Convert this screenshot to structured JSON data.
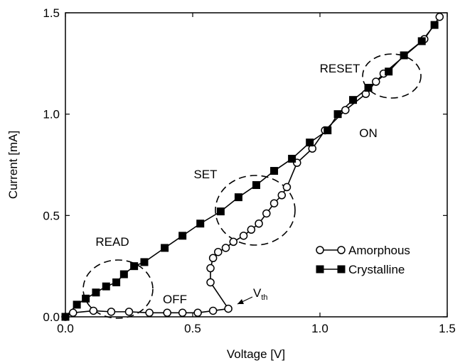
{
  "chart_data": {
    "type": "line",
    "xlabel": "Voltage [V]",
    "ylabel": "Current [mA]",
    "xlim": [
      0,
      1.5
    ],
    "ylim": [
      0,
      1.5
    ],
    "xticks": [
      {
        "value": 0,
        "label": "0.0"
      },
      {
        "value": 0.5,
        "label": "0.5"
      },
      {
        "value": 1,
        "label": "1.0"
      },
      {
        "value": 1.5,
        "label": "1.5"
      }
    ],
    "yticks": [
      {
        "value": 0,
        "label": "0.0"
      },
      {
        "value": 0.5,
        "label": "0.5"
      },
      {
        "value": 1,
        "label": "1.0"
      },
      {
        "value": 1.5,
        "label": "1.5"
      }
    ],
    "legend": "lower right",
    "series": [
      {
        "name": "Amorphous",
        "color": "#000000",
        "marker": "open-circle",
        "x": [
          0,
          0.03,
          0.11,
          0.18,
          0.25,
          0.33,
          0.4,
          0.46,
          0.52,
          0.58,
          0.64,
          0.57,
          0.57,
          0.58,
          0.6,
          0.63,
          0.66,
          0.7,
          0.73,
          0.76,
          0.79,
          0.82,
          0.85,
          0.87,
          0.91,
          0.97,
          1.02,
          1.1,
          1.18,
          1.22,
          1.25,
          1.41,
          1.47
        ],
        "values": [
          0,
          0.02,
          0.03,
          0.025,
          0.025,
          0.02,
          0.02,
          0.02,
          0.02,
          0.03,
          0.04,
          0.17,
          0.24,
          0.29,
          0.32,
          0.34,
          0.37,
          0.4,
          0.43,
          0.46,
          0.51,
          0.56,
          0.6,
          0.64,
          0.76,
          0.83,
          0.92,
          1.02,
          1.1,
          1.16,
          1.2,
          1.37,
          1.48
        ]
      },
      {
        "name": "Crystalline",
        "color": "#000000",
        "marker": "filled-square",
        "x": [
          0,
          0.045,
          0.08,
          0.12,
          0.16,
          0.2,
          0.23,
          0.27,
          0.31,
          0.39,
          0.46,
          0.53,
          0.61,
          0.68,
          0.75,
          0.82,
          0.89,
          0.96,
          1.03,
          1.07,
          1.13,
          1.19,
          1.27,
          1.33,
          1.4,
          1.45
        ],
        "values": [
          0,
          0.06,
          0.09,
          0.12,
          0.15,
          0.17,
          0.21,
          0.25,
          0.27,
          0.34,
          0.4,
          0.46,
          0.52,
          0.59,
          0.65,
          0.72,
          0.78,
          0.86,
          0.92,
          1.0,
          1.07,
          1.13,
          1.21,
          1.29,
          1.36,
          1.44
        ]
      }
    ],
    "annotations": [
      {
        "text": "READ"
      },
      {
        "text": "SET"
      },
      {
        "text": "RESET"
      },
      {
        "text": "OFF"
      },
      {
        "text": "ON"
      },
      {
        "text": "V",
        "subscript": "th"
      }
    ]
  }
}
